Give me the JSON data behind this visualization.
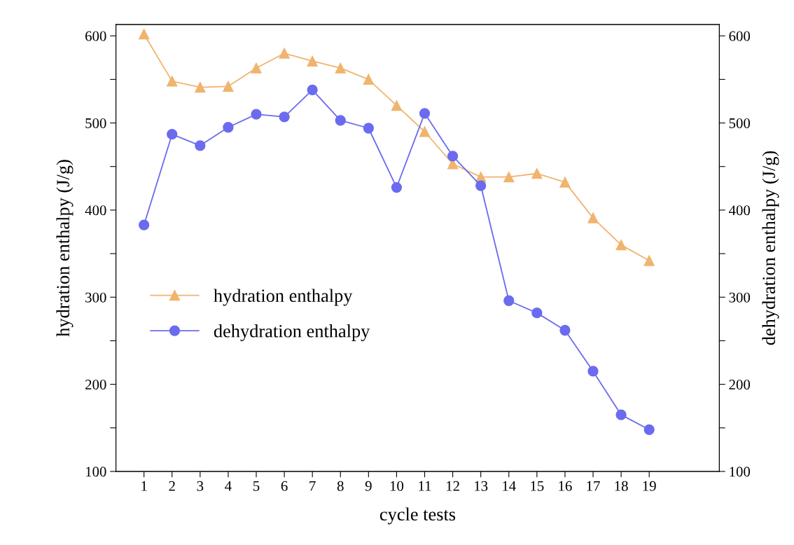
{
  "chart_data": {
    "type": "line",
    "xlabel": "cycle tests",
    "ylabel": "hydration enthalpy (J/g)",
    "y2label": "dehydration enthalpy (J/g)",
    "x": [
      1,
      2,
      3,
      4,
      5,
      6,
      7,
      8,
      9,
      10,
      11,
      12,
      13,
      14,
      15,
      16,
      17,
      18,
      19
    ],
    "series": [
      {
        "name": "hydration enthalpy",
        "color": "#f0b46e",
        "marker": "triangle",
        "values": [
          602,
          548,
          541,
          542,
          563,
          580,
          571,
          563,
          550,
          520,
          490,
          453,
          438,
          438,
          442,
          432,
          391,
          360,
          342
        ]
      },
      {
        "name": "dehydration enthalpy",
        "color": "#6b6bef",
        "marker": "circle",
        "values": [
          383,
          487,
          474,
          495,
          510,
          507,
          538,
          503,
          494,
          426,
          511,
          462,
          428,
          296,
          282,
          262,
          215,
          165,
          148
        ]
      }
    ],
    "xlim": [
      0,
      21.5
    ],
    "xticks": [
      1,
      2,
      3,
      4,
      5,
      6,
      7,
      8,
      9,
      10,
      11,
      12,
      13,
      14,
      15,
      16,
      17,
      18,
      19
    ],
    "ylim": [
      100,
      613
    ],
    "yticks": [
      100,
      {
        "value": 150,
        "label": null
      },
      200,
      {
        "value": 250,
        "label": null
      },
      300,
      {
        "value": 350,
        "label": null
      },
      400,
      {
        "value": 450,
        "label": null
      },
      500,
      {
        "value": 550,
        "label": null
      },
      600
    ],
    "y2lim": [
      100,
      613
    ],
    "y2ticks": [
      100,
      {
        "value": 150,
        "label": null
      },
      200,
      {
        "value": 250,
        "label": null
      },
      300,
      {
        "value": 350,
        "label": null
      },
      400,
      {
        "value": 450,
        "label": null
      },
      500,
      {
        "value": 550,
        "label": null
      },
      600
    ],
    "legend": "left",
    "grid": false,
    "line_style": "solid"
  }
}
